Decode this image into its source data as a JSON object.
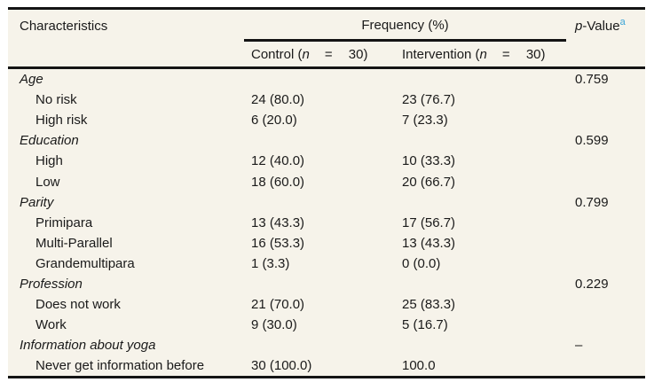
{
  "table": {
    "columns": {
      "characteristics": "Characteristics",
      "frequency_group": "Frequency (%)",
      "pvalue": {
        "italic": "p",
        "rest": "-Value",
        "sup": "a"
      },
      "subcolumns": [
        {
          "pre": "Control (",
          "n": "n",
          "post": "= 30)"
        },
        {
          "pre": "Intervention (",
          "n": "n",
          "post": "= 30)"
        }
      ]
    },
    "rows": [
      {
        "label": "Age",
        "category": true,
        "control": "",
        "intervention": "",
        "p": "0.759"
      },
      {
        "label": "No risk",
        "category": false,
        "control": "24 (80.0)",
        "intervention": "23 (76.7)",
        "p": ""
      },
      {
        "label": "High risk",
        "category": false,
        "control": "6 (20.0)",
        "intervention": "7 (23.3)",
        "p": ""
      },
      {
        "label": "Education",
        "category": true,
        "control": "",
        "intervention": "",
        "p": "0.599"
      },
      {
        "label": "High",
        "category": false,
        "control": "12 (40.0)",
        "intervention": "10 (33.3)",
        "p": ""
      },
      {
        "label": "Low",
        "category": false,
        "control": "18 (60.0)",
        "intervention": "20 (66.7)",
        "p": ""
      },
      {
        "label": "Parity",
        "category": true,
        "control": "",
        "intervention": "",
        "p": "0.799"
      },
      {
        "label": "Primipara",
        "category": false,
        "control": "13 (43.3)",
        "intervention": "17 (56.7)",
        "p": ""
      },
      {
        "label": "Multi-Parallel",
        "category": false,
        "control": "16 (53.3)",
        "intervention": "13 (43.3)",
        "p": ""
      },
      {
        "label": "Grandemultipara",
        "category": false,
        "control": "1 (3.3)",
        "intervention": "0 (0.0)",
        "p": ""
      },
      {
        "label": "Profession",
        "category": true,
        "control": "",
        "intervention": "",
        "p": "0.229"
      },
      {
        "label": "Does not work",
        "category": false,
        "control": "21 (70.0)",
        "intervention": "25 (83.3)",
        "p": ""
      },
      {
        "label": "Work",
        "category": false,
        "control": "9 (30.0)",
        "intervention": "5 (16.7)",
        "p": ""
      },
      {
        "label": "Information about yoga",
        "category": true,
        "control": "",
        "intervention": "",
        "p": "–"
      },
      {
        "label": "Never get information before",
        "category": false,
        "control": "30 (100.0)",
        "intervention": "100.0",
        "p": ""
      }
    ],
    "colors": {
      "table_background": "#f6f3ea",
      "rule": "#141414",
      "text": "#1a1a1a",
      "footnote_superscript": "#3aa5d8"
    }
  }
}
